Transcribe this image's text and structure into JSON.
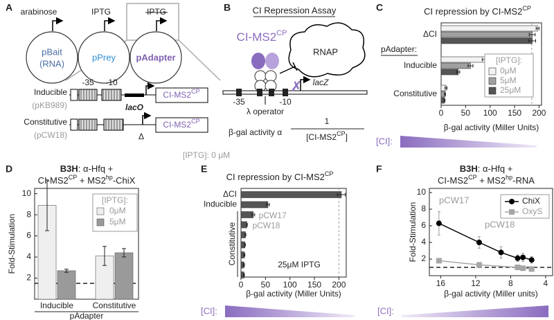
{
  "panel_labels": [
    "A",
    "B",
    "C",
    "D",
    "E",
    "F"
  ],
  "diagram_a": {
    "inducers": [
      "arabinose",
      "IPTG",
      "IPTG"
    ],
    "plasmids": [
      "pBait",
      "pPrey",
      "pAdapter"
    ],
    "bait_note": "(RNA)",
    "constructs": [
      {
        "name": "Inducible",
        "plasmid": "(pKB989)"
      },
      {
        "name": "Constitutive",
        "plasmid": "(pCW18)"
      }
    ],
    "promoter_labels": [
      "-35",
      "-10"
    ],
    "operator": "lacO",
    "gene": [
      "CI-MS2",
      "CP"
    ],
    "deletion": "Δ",
    "condition": "[IPTG]: 0 μM"
  },
  "diagram_b": {
    "title": "CI Repression Assay",
    "protein": [
      "CI-MS2",
      "CP"
    ],
    "polymerase": "RNAP",
    "reporter": "lacZ",
    "promoter_labels": [
      "-35",
      "-10"
    ],
    "operator": "λ operator",
    "equation": "β-gal activity α",
    "numerator": "1",
    "denominator": [
      "[CI-MS2",
      "CP",
      "]"
    ]
  },
  "chart_data": [
    {
      "type": "hbar",
      "title": [
        "CI repression by CI-MS2",
        "CP"
      ],
      "categories": [
        "ΔCI",
        "Inducible",
        "Constitutive"
      ],
      "group_heading": "pAdapter:",
      "legend_title": "[IPTG]:",
      "series": [
        {
          "name": "0μM",
          "color": "#f2f2f2",
          "values": [
            197,
            90,
            10
          ],
          "errors": [
            3,
            6,
            2
          ]
        },
        {
          "name": "5μM",
          "color": "#a0a0a0",
          "values": [
            186,
            60,
            8
          ],
          "errors": [
            6,
            5,
            1
          ]
        },
        {
          "name": "25μM",
          "color": "#555555",
          "values": [
            186,
            35,
            7
          ],
          "errors": [
            7,
            3,
            1
          ]
        }
      ],
      "xlabel": "β-gal activity (Miller Units)",
      "xlim": [
        0,
        205
      ],
      "xticks": [
        0,
        50,
        100,
        150,
        200
      ],
      "reference_line": 185,
      "scale_label": "[CI]:"
    },
    {
      "type": "bar",
      "title": [
        [
          "B3H",
          ": α-Hfq +"
        ],
        [
          "CI-MS2",
          "CP",
          " + MS2",
          "hp",
          "-ChiX"
        ]
      ],
      "categories": [
        "Inducible",
        "Constitutive"
      ],
      "legend_title": "[IPTG]:",
      "series": [
        {
          "name": "0μM",
          "color": "#efefef",
          "values": [
            8.9,
            4.1
          ],
          "errors": [
            2.4,
            0.9
          ]
        },
        {
          "name": "5μM",
          "color": "#9a9a9a",
          "values": [
            2.7,
            4.4
          ],
          "errors": [
            0.15,
            0.4
          ]
        }
      ],
      "xlabel": "pAdapter",
      "ylabel": "Fold-Stimulation",
      "ylim": [
        0,
        10.5
      ],
      "yticks": [
        2,
        4,
        6,
        8,
        10
      ],
      "reference_line": 1.5
    },
    {
      "type": "hbar",
      "title": [
        "CI repression by CI-MS2",
        "CP"
      ],
      "categories": [
        "ΔCI",
        "Inducible",
        null,
        null,
        null,
        null,
        null,
        null,
        null
      ],
      "values": [
        205,
        55,
        25,
        12,
        9,
        8,
        7,
        6,
        6
      ],
      "errors": [
        8,
        3,
        3,
        1,
        1,
        1,
        1,
        1,
        1
      ],
      "color": "#555555",
      "bar_notes": [
        null,
        null,
        "pCW17",
        "pCW18",
        null,
        null,
        null,
        null,
        null
      ],
      "group_label": "Constitutive",
      "note": "25μM IPTG",
      "xlabel": "β-gal activity (Miller Units)",
      "xlim": [
        0,
        215
      ],
      "xticks": [
        0,
        50,
        100,
        150,
        200
      ],
      "reference_line": 200,
      "scale_label": "[CI]:"
    },
    {
      "type": "line",
      "title": [
        [
          "B3H",
          ": α-Hfq +"
        ],
        [
          "CI-MS2",
          "CP",
          " + MS2",
          "hp",
          "-RNA"
        ]
      ],
      "series": [
        {
          "name": "ChiX",
          "color": "#000000",
          "marker": "circle",
          "x": [
            16.2,
            11.6,
            9.1,
            7.2,
            6.6,
            5.6
          ],
          "values": [
            6.3,
            4.0,
            2.8,
            2.1,
            2.2,
            1.9
          ],
          "errors": [
            1.4,
            0.7,
            0.7,
            0.4,
            0.5,
            0.4
          ]
        },
        {
          "name": "OxyS",
          "color": "#a6a6a6",
          "marker": "square",
          "x": [
            16.2,
            11.6,
            7.2,
            6.6,
            5.6
          ],
          "values": [
            1.8,
            1.3,
            1.0,
            0.9,
            0.8
          ],
          "errors": [
            0.2,
            0.2,
            0.2,
            0.1,
            0.1
          ]
        }
      ],
      "annotations": [
        "pCW17",
        "pCW18"
      ],
      "xlabel": "β-gal activity (Miller units)",
      "ylabel": "Fold-Stimulation",
      "xlim": [
        17.3,
        3.2
      ],
      "xticks": [
        16,
        12,
        8,
        4
      ],
      "ylim": [
        0,
        10.5
      ],
      "yticks": [
        2,
        4,
        6,
        8,
        10
      ],
      "reference_line": 1,
      "scale_label": "[CI]:"
    }
  ]
}
